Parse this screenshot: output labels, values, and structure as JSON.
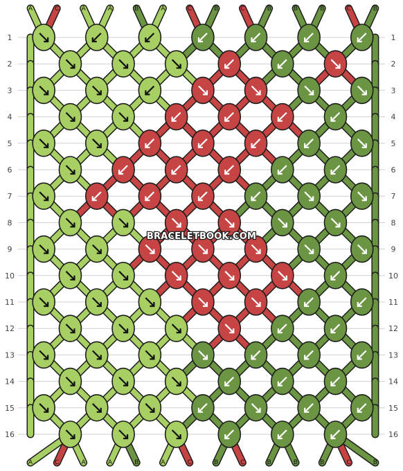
{
  "colors": {
    "A": "#a7cf63",
    "B": "#6b9543",
    "C": "#c74444",
    "outline": "#1d1d1d",
    "gridline": "#cfcfcf"
  },
  "top_strands": [
    "A",
    "C",
    "A",
    "A",
    "B",
    "A",
    "C",
    "B",
    "C",
    "B",
    "B",
    "B",
    "C",
    "B"
  ],
  "bottom_strands": [
    "A",
    "C",
    "A",
    "A",
    "B",
    "A",
    "C",
    "B",
    "C",
    "B",
    "B",
    "B",
    "C",
    "B"
  ],
  "row_labels": [
    "1",
    "2",
    "3",
    "4",
    "5",
    "6",
    "7",
    "8",
    "9",
    "10",
    "11",
    "12",
    "13",
    "14",
    "15",
    "16"
  ],
  "watermark": "BRACELETBOOK.COM",
  "knot_rows": [
    {
      "colors": [
        "A",
        "A",
        "A",
        "B",
        "B",
        "B",
        "B"
      ],
      "arrows": [
        "br",
        "bl",
        "bl",
        "bl",
        "bl",
        "bl",
        "bl"
      ]
    },
    {
      "colors": [
        "A",
        "A",
        "A",
        "C",
        "B",
        "C"
      ],
      "arrows": [
        "br",
        "br",
        "br",
        "bl",
        "bl",
        "br"
      ]
    },
    {
      "colors": [
        "A",
        "A",
        "A",
        "C",
        "C",
        "B",
        "B"
      ],
      "arrows": [
        "br",
        "br",
        "bl",
        "br",
        "br",
        "br",
        "br"
      ]
    },
    {
      "colors": [
        "A",
        "A",
        "C",
        "C",
        "C",
        "B"
      ],
      "arrows": [
        "br",
        "br",
        "bl",
        "bl",
        "bl",
        "bl"
      ]
    },
    {
      "colors": [
        "A",
        "A",
        "C",
        "C",
        "C",
        "B",
        "B"
      ],
      "arrows": [
        "br",
        "br",
        "bl",
        "bl",
        "bl",
        "bl",
        "br"
      ]
    },
    {
      "colors": [
        "A",
        "C",
        "C",
        "C",
        "B",
        "B"
      ],
      "arrows": [
        "br",
        "bl",
        "bl",
        "bl",
        "bl",
        "bl"
      ]
    },
    {
      "colors": [
        "A",
        "C",
        "C",
        "C",
        "B",
        "B",
        "B"
      ],
      "arrows": [
        "br",
        "bl",
        "bl",
        "bl",
        "bl",
        "br",
        "br"
      ]
    },
    {
      "colors": [
        "A",
        "A",
        "C",
        "C",
        "B",
        "B"
      ],
      "arrows": [
        "br",
        "br",
        "br",
        "br",
        "br",
        "br"
      ]
    },
    {
      "colors": [
        "A",
        "A",
        "C",
        "C",
        "C",
        "B",
        "B"
      ],
      "arrows": [
        "br",
        "br",
        "br",
        "br",
        "br",
        "br",
        "br"
      ]
    },
    {
      "colors": [
        "A",
        "A",
        "C",
        "C",
        "C",
        "B"
      ],
      "arrows": [
        "br",
        "br",
        "br",
        "br",
        "br",
        "bl"
      ]
    },
    {
      "colors": [
        "A",
        "A",
        "A",
        "C",
        "C",
        "B",
        "B"
      ],
      "arrows": [
        "br",
        "br",
        "br",
        "br",
        "br",
        "bl",
        "bl"
      ]
    },
    {
      "colors": [
        "A",
        "A",
        "A",
        "C",
        "B",
        "B"
      ],
      "arrows": [
        "br",
        "br",
        "br",
        "br",
        "bl",
        "bl"
      ]
    },
    {
      "colors": [
        "A",
        "A",
        "A",
        "B",
        "B",
        "B",
        "B"
      ],
      "arrows": [
        "br",
        "br",
        "br",
        "br",
        "bl",
        "bl",
        "bl"
      ]
    },
    {
      "colors": [
        "A",
        "A",
        "A",
        "B",
        "B",
        "B"
      ],
      "arrows": [
        "br",
        "br",
        "br",
        "bl",
        "bl",
        "bl"
      ]
    },
    {
      "colors": [
        "A",
        "A",
        "A",
        "B",
        "B",
        "B",
        "B"
      ],
      "arrows": [
        "br",
        "br",
        "br",
        "bl",
        "br",
        "bl",
        "bl"
      ]
    },
    {
      "colors": [
        "A",
        "A",
        "A",
        "B",
        "B",
        "B"
      ],
      "arrows": [
        "br",
        "br",
        "br",
        "bl",
        "bl",
        "bl"
      ]
    }
  ]
}
